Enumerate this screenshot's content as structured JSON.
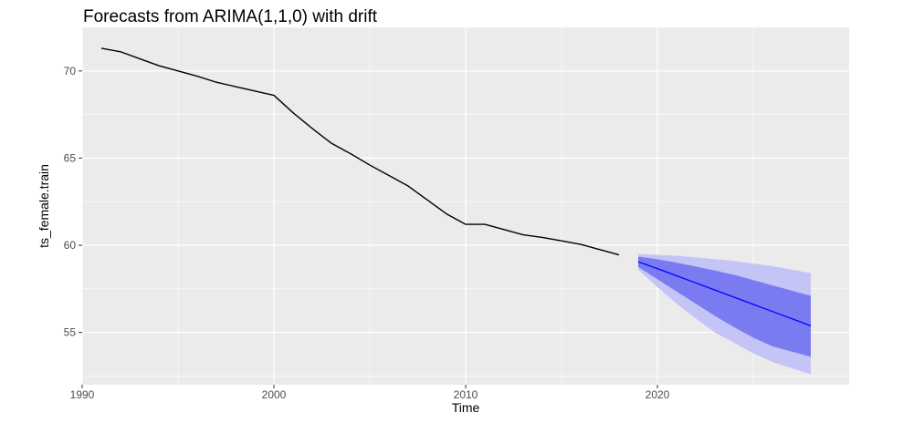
{
  "chart_data": {
    "type": "line",
    "title": "Forecasts from ARIMA(1,1,0) with drift",
    "xlabel": "Time",
    "ylabel": "ts_female.train",
    "xlim": [
      1990,
      2030
    ],
    "ylim": [
      52,
      72.5
    ],
    "x_ticks": [
      1990,
      2000,
      2010,
      2020
    ],
    "y_ticks": [
      55,
      60,
      65,
      70
    ],
    "grid": true,
    "background": "#ebebeb",
    "colors": {
      "history": "#000000",
      "forecast_line": "#0000ff",
      "pi80": "#7b7bf1",
      "pi95": "#c4c4f6"
    },
    "series": [
      {
        "x": [
          1991,
          1992,
          1993,
          1994,
          1995,
          1996,
          1997,
          1998,
          1999,
          2000,
          2001,
          2002,
          2003,
          2004,
          2005,
          2006,
          2007,
          2008,
          2009,
          2010,
          2011,
          2012,
          2013,
          2014,
          2015,
          2016,
          2017,
          2018
        ],
        "values": [
          71.3,
          71.1,
          70.7,
          70.3,
          70.0,
          69.7,
          69.35,
          69.1,
          68.85,
          68.6,
          67.6,
          66.7,
          65.85,
          65.25,
          64.6,
          64.0,
          63.4,
          62.6,
          61.8,
          61.2,
          61.2,
          60.9,
          60.6,
          60.45,
          60.25,
          60.05,
          59.75,
          59.45
        ]
      },
      {
        "x": [
          2019,
          2020,
          2021,
          2022,
          2023,
          2024,
          2025,
          2026,
          2027,
          2028
        ],
        "values": [
          59.05,
          58.66,
          58.25,
          57.84,
          57.43,
          57.02,
          56.61,
          56.2,
          55.79,
          55.38
        ],
        "lo80": [
          58.75,
          58.05,
          57.35,
          56.65,
          55.95,
          55.3,
          54.7,
          54.2,
          53.9,
          53.6
        ],
        "hi80": [
          59.35,
          59.2,
          59.0,
          58.78,
          58.55,
          58.3,
          58.0,
          57.7,
          57.4,
          57.1
        ],
        "lo95": [
          58.6,
          57.6,
          56.65,
          55.8,
          55.0,
          54.4,
          53.8,
          53.3,
          52.95,
          52.6
        ],
        "hi95": [
          59.5,
          59.45,
          59.4,
          59.3,
          59.2,
          59.1,
          58.95,
          58.8,
          58.6,
          58.4
        ]
      }
    ]
  }
}
